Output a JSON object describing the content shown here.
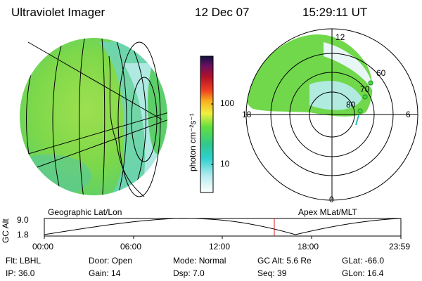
{
  "header": {
    "instrument": "Ultraviolet Imager",
    "date": "12 Dec 07",
    "time": "15:29:11 UT"
  },
  "colorbar": {
    "unit_label": "photon cm⁻²s⁻¹",
    "ticks": [
      "100",
      "10"
    ]
  },
  "panels": {
    "left_label": "Geographic Lat/Lon",
    "right_label": "Apex  MLat/MLT"
  },
  "polar_plot": {
    "mlt_labels": {
      "top": "12",
      "left": "18",
      "right": "6",
      "bottom": "0"
    },
    "lat_labels": [
      "60",
      "70",
      "80"
    ]
  },
  "altitude_plot": {
    "ylabel": "GC Alt",
    "yticks": [
      "9.0",
      "1.8"
    ],
    "xticks": [
      "00:00",
      "06:00",
      "12:00",
      "18:00",
      "23:59"
    ],
    "current_time_fraction": 0.645
  },
  "status": {
    "row1": [
      {
        "label": "Flt:",
        "value": "LBHL"
      },
      {
        "label": "Door:",
        "value": "Open"
      },
      {
        "label": "Mode:",
        "value": "Normal"
      },
      {
        "label": "GC Alt:",
        "value": "5.6 Re"
      },
      {
        "label": "GLat:",
        "value": "-66.0"
      }
    ],
    "row2": [
      {
        "label": "IP:",
        "value": "36.0"
      },
      {
        "label": "Gain:",
        "value": "14"
      },
      {
        "label": "Dsp:",
        "value": "7.0"
      },
      {
        "label": "Seq:",
        "value": "39"
      },
      {
        "label": "GLon:",
        "value": "16.4"
      }
    ]
  }
}
